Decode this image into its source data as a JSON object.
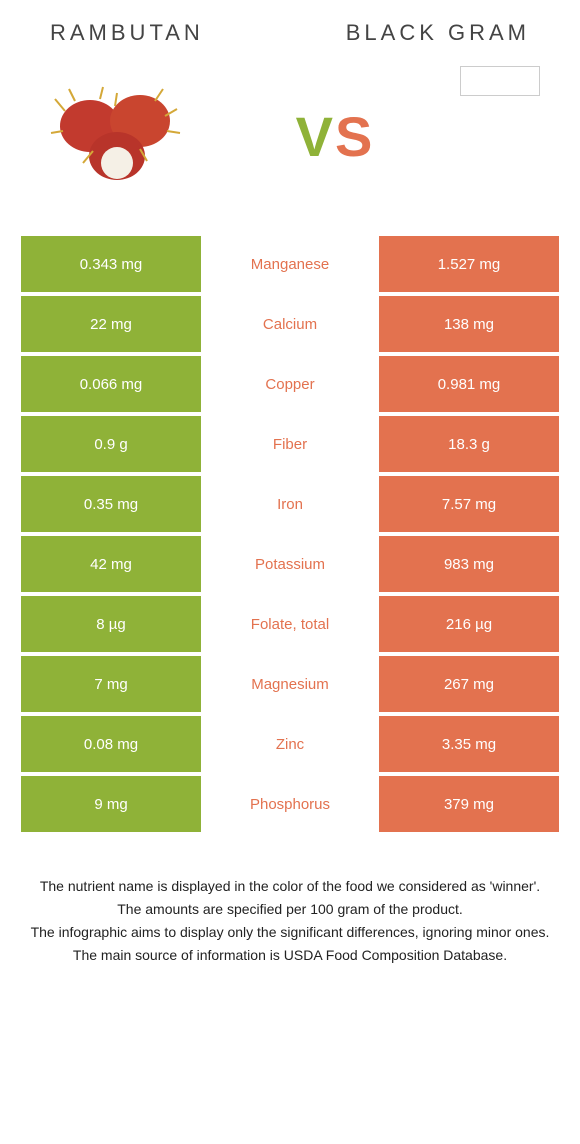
{
  "header": {
    "left_title": "Rambutan",
    "right_title": "Black Gram",
    "vs_v": "V",
    "vs_s": "S"
  },
  "colors": {
    "left": "#8fb238",
    "right": "#e3724f",
    "text": "#222222",
    "title": "#444444",
    "background": "#ffffff"
  },
  "table": {
    "type": "table",
    "rows": [
      {
        "left": "0.343 mg",
        "label": "Manganese",
        "right": "1.527 mg",
        "winner": "right"
      },
      {
        "left": "22 mg",
        "label": "Calcium",
        "right": "138 mg",
        "winner": "right"
      },
      {
        "left": "0.066 mg",
        "label": "Copper",
        "right": "0.981 mg",
        "winner": "right"
      },
      {
        "left": "0.9 g",
        "label": "Fiber",
        "right": "18.3 g",
        "winner": "right"
      },
      {
        "left": "0.35 mg",
        "label": "Iron",
        "right": "7.57 mg",
        "winner": "right"
      },
      {
        "left": "42 mg",
        "label": "Potassium",
        "right": "983 mg",
        "winner": "right"
      },
      {
        "left": "8 µg",
        "label": "Folate, total",
        "right": "216 µg",
        "winner": "right"
      },
      {
        "left": "7 mg",
        "label": "Magnesium",
        "right": "267 mg",
        "winner": "right"
      },
      {
        "left": "0.08 mg",
        "label": "Zinc",
        "right": "3.35 mg",
        "winner": "right"
      },
      {
        "left": "9 mg",
        "label": "Phosphorus",
        "right": "379 mg",
        "winner": "right"
      }
    ]
  },
  "notes": {
    "line1": "The nutrient name is displayed in the color of the food we considered as 'winner'.",
    "line2": "The amounts are specified per 100 gram of the product.",
    "line3": "The infographic aims to display only the significant differences, ignoring minor ones.",
    "line4": "The main source of information is USDA Food Composition Database."
  }
}
